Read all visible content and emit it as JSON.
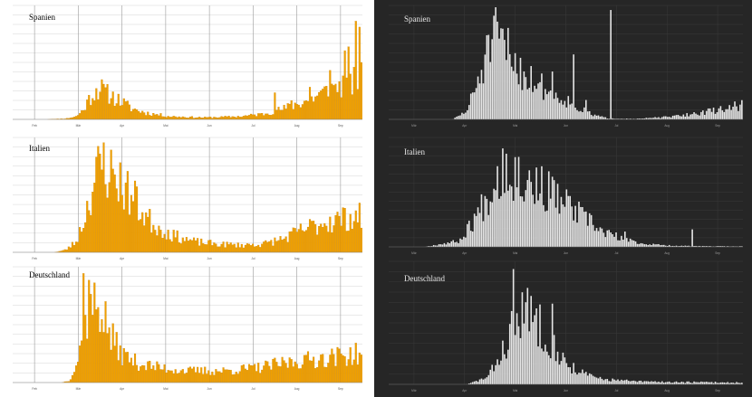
{
  "colors": {
    "left_background": "#ffffff",
    "left_bar": "#f0a000",
    "left_bar_edge": "#c07a00",
    "left_grid": "#d6d6d6",
    "right_background": "#262626",
    "right_bar": "#e6e6e6",
    "right_grid": "#3a3a3a"
  },
  "chart_data": [
    {
      "type": "bar",
      "theme": "light",
      "title": "Spanien",
      "months": [
        "Feb",
        "Mär",
        "Apr",
        "Mai",
        "Jun",
        "Jul",
        "Aug",
        "Sep"
      ],
      "ylim": [
        0,
        290
      ],
      "grid": true,
      "envelope": [
        [
          0,
          0
        ],
        [
          0.1,
          0
        ],
        [
          0.15,
          2
        ],
        [
          0.18,
          8
        ],
        [
          0.2,
          25
        ],
        [
          0.22,
          60
        ],
        [
          0.245,
          88
        ],
        [
          0.27,
          70
        ],
        [
          0.3,
          55
        ],
        [
          0.34,
          30
        ],
        [
          0.38,
          18
        ],
        [
          0.45,
          8
        ],
        [
          0.55,
          5
        ],
        [
          0.65,
          8
        ],
        [
          0.72,
          15
        ],
        [
          0.78,
          30
        ],
        [
          0.85,
          55
        ],
        [
          0.92,
          85
        ],
        [
          1,
          110
        ]
      ],
      "spikes": [
        [
          0.75,
          68
        ],
        [
          0.8,
          48
        ],
        [
          0.85,
          82
        ],
        [
          0.875,
          60
        ],
        [
          0.91,
          125
        ],
        [
          0.925,
          90
        ],
        [
          0.955,
          175
        ],
        [
          0.965,
          185
        ],
        [
          0.985,
          250
        ],
        [
          0.993,
          235
        ],
        [
          1.0,
          145
        ]
      ],
      "seed": 11
    },
    {
      "type": "bar",
      "theme": "light",
      "title": "Italien",
      "months": [
        "Feb",
        "Mär",
        "Apr",
        "Mai",
        "Jun",
        "Jul",
        "Aug",
        "Sep"
      ],
      "ylim": [
        0,
        900
      ],
      "grid": true,
      "envelope": [
        [
          0,
          0
        ],
        [
          0.12,
          0
        ],
        [
          0.15,
          20
        ],
        [
          0.18,
          90
        ],
        [
          0.2,
          250
        ],
        [
          0.22,
          480
        ],
        [
          0.24,
          660
        ],
        [
          0.255,
          750
        ],
        [
          0.27,
          700
        ],
        [
          0.3,
          620
        ],
        [
          0.34,
          460
        ],
        [
          0.38,
          300
        ],
        [
          0.42,
          200
        ],
        [
          0.46,
          140
        ],
        [
          0.52,
          90
        ],
        [
          0.58,
          70
        ],
        [
          0.65,
          60
        ],
        [
          0.72,
          70
        ],
        [
          0.78,
          120
        ],
        [
          0.84,
          200
        ],
        [
          0.9,
          260
        ],
        [
          0.96,
          290
        ],
        [
          1,
          300
        ]
      ],
      "spikes": [
        [
          0.26,
          860
        ],
        [
          0.35,
          560
        ]
      ],
      "seed": 23
    },
    {
      "type": "bar",
      "theme": "light",
      "title": "Deutschland",
      "months": [
        "Feb",
        "Mär",
        "Apr",
        "Mai",
        "Jun",
        "Jul",
        "Aug",
        "Sep"
      ],
      "ylim": [
        0,
        260
      ],
      "grid": true,
      "envelope": [
        [
          0,
          0
        ],
        [
          0.14,
          0
        ],
        [
          0.16,
          5
        ],
        [
          0.18,
          40
        ],
        [
          0.2,
          110
        ],
        [
          0.215,
          170
        ],
        [
          0.23,
          185
        ],
        [
          0.245,
          190
        ],
        [
          0.26,
          160
        ],
        [
          0.28,
          110
        ],
        [
          0.31,
          70
        ],
        [
          0.35,
          50
        ],
        [
          0.4,
          38
        ],
        [
          0.5,
          28
        ],
        [
          0.6,
          28
        ],
        [
          0.7,
          35
        ],
        [
          0.8,
          50
        ],
        [
          0.9,
          60
        ],
        [
          1,
          70
        ]
      ],
      "spikes": [
        [
          0.2,
          245
        ],
        [
          0.215,
          230
        ]
      ],
      "seed": 37
    },
    {
      "type": "bar",
      "theme": "dark",
      "title": "Spanien",
      "months": [
        "Mär",
        "Apr",
        "Mai",
        "Jun",
        "Jul",
        "Aug",
        "Sep"
      ],
      "ylim": [
        0,
        1000
      ],
      "grid": true,
      "envelope": [
        [
          0,
          0
        ],
        [
          0.18,
          0
        ],
        [
          0.22,
          80
        ],
        [
          0.25,
          350
        ],
        [
          0.28,
          650
        ],
        [
          0.3,
          760
        ],
        [
          0.32,
          720
        ],
        [
          0.35,
          580
        ],
        [
          0.38,
          430
        ],
        [
          0.42,
          350
        ],
        [
          0.46,
          250
        ],
        [
          0.5,
          190
        ],
        [
          0.54,
          100
        ],
        [
          0.58,
          40
        ],
        [
          0.62,
          10
        ],
        [
          0.7,
          5
        ],
        [
          0.8,
          25
        ],
        [
          0.88,
          60
        ],
        [
          0.95,
          100
        ],
        [
          1,
          140
        ]
      ],
      "spikes": [
        [
          0.46,
          420
        ],
        [
          0.525,
          570
        ],
        [
          0.56,
          170
        ],
        [
          0.63,
          960
        ]
      ],
      "seed": 51
    },
    {
      "type": "bar",
      "theme": "dark",
      "title": "Italien",
      "months": [
        "Mär",
        "Apr",
        "Mai",
        "Jun",
        "Jul",
        "Aug",
        "Sep"
      ],
      "ylim": [
        0,
        1000
      ],
      "grid": true,
      "envelope": [
        [
          0,
          0
        ],
        [
          0.1,
          0
        ],
        [
          0.2,
          60
        ],
        [
          0.26,
          380
        ],
        [
          0.3,
          660
        ],
        [
          0.33,
          800
        ],
        [
          0.36,
          720
        ],
        [
          0.42,
          600
        ],
        [
          0.48,
          480
        ],
        [
          0.54,
          320
        ],
        [
          0.6,
          160
        ],
        [
          0.66,
          80
        ],
        [
          0.72,
          30
        ],
        [
          0.8,
          12
        ],
        [
          0.9,
          6
        ],
        [
          1,
          5
        ]
      ],
      "spikes": [
        [
          0.32,
          900
        ],
        [
          0.67,
          140
        ],
        [
          0.86,
          160
        ]
      ],
      "seed": 67
    },
    {
      "type": "bar",
      "theme": "dark",
      "title": "Deutschland",
      "months": [
        "Mär",
        "Apr",
        "Mai",
        "Jun",
        "Jul",
        "Aug",
        "Sep"
      ],
      "ylim": [
        0,
        320
      ],
      "grid": true,
      "envelope": [
        [
          0,
          0
        ],
        [
          0.22,
          0
        ],
        [
          0.28,
          20
        ],
        [
          0.32,
          90
        ],
        [
          0.35,
          160
        ],
        [
          0.38,
          200
        ],
        [
          0.41,
          190
        ],
        [
          0.44,
          150
        ],
        [
          0.47,
          100
        ],
        [
          0.5,
          60
        ],
        [
          0.55,
          30
        ],
        [
          0.6,
          15
        ],
        [
          0.7,
          8
        ],
        [
          0.85,
          6
        ],
        [
          1,
          5
        ]
      ],
      "spikes": [
        [
          0.35,
          300
        ],
        [
          0.4,
          230
        ],
        [
          0.46,
          210
        ]
      ],
      "seed": 83
    }
  ]
}
